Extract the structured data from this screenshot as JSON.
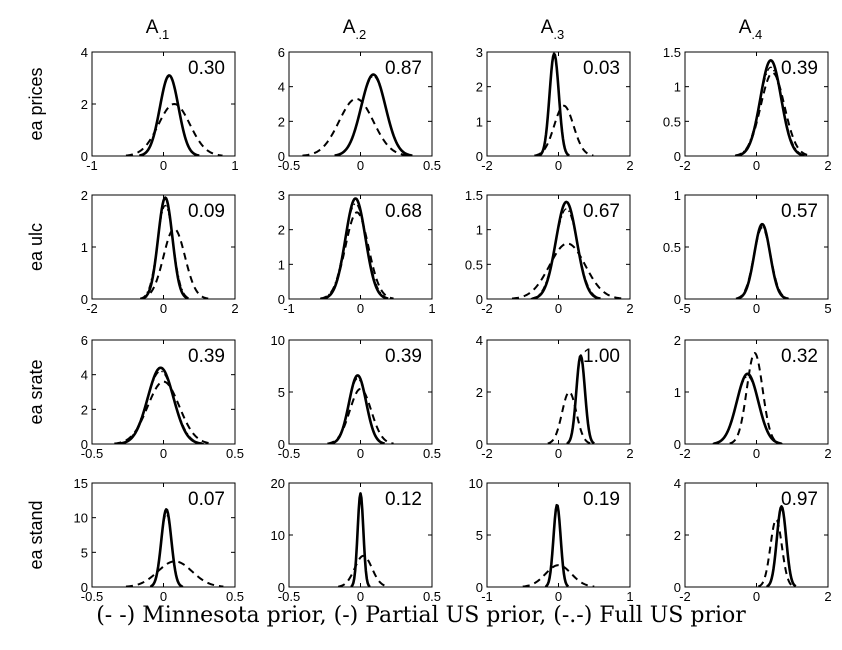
{
  "columns": [
    {
      "title": "A",
      "subscript": ".1"
    },
    {
      "title": "A",
      "subscript": ".2"
    },
    {
      "title": "A",
      "subscript": ".3"
    },
    {
      "title": "A",
      "subscript": ".4"
    }
  ],
  "rows": [
    "ea prices",
    "ea ulc",
    "ea srate",
    "ea stand"
  ],
  "caption": "(- -) Minnesota prior, (-) Partial US prior, (-.-) Full US prior",
  "chart_data": {
    "type": "line",
    "grid": false,
    "legend": "none",
    "panels": [
      {
        "row": 0,
        "col": 0,
        "value_label": "0.30",
        "xlim": [
          -1,
          1
        ],
        "ylim": [
          0,
          4
        ],
        "xticks": [
          {
            "v": -1,
            "label": "-1"
          },
          {
            "v": 0,
            "label": "0"
          },
          {
            "v": 1,
            "label": "1"
          }
        ],
        "yticks": [
          {
            "v": 0,
            "label": "0"
          },
          {
            "v": 2,
            "label": "2"
          },
          {
            "v": 4,
            "label": "4"
          }
        ],
        "series": [
          {
            "style": "solid",
            "mean": 0.08,
            "sd": 0.13,
            "peak": 3.1
          },
          {
            "style": "dashdot",
            "mean": 0.08,
            "sd": 0.13,
            "peak": 3.05
          },
          {
            "style": "dashed",
            "mean": 0.15,
            "sd": 0.22,
            "peak": 2.0
          }
        ]
      },
      {
        "row": 0,
        "col": 1,
        "value_label": "0.87",
        "xlim": [
          -0.5,
          0.5
        ],
        "ylim": [
          0,
          6
        ],
        "xticks": [
          {
            "v": -0.5,
            "label": "-0.5"
          },
          {
            "v": 0,
            "label": "0"
          },
          {
            "v": 0.5,
            "label": "0.5"
          }
        ],
        "yticks": [
          {
            "v": 0,
            "label": "0"
          },
          {
            "v": 2,
            "label": "2"
          },
          {
            "v": 4,
            "label": "4"
          },
          {
            "v": 6,
            "label": "6"
          }
        ],
        "series": [
          {
            "style": "solid",
            "mean": 0.09,
            "sd": 0.085,
            "peak": 4.7
          },
          {
            "style": "dashdot",
            "mean": 0.09,
            "sd": 0.085,
            "peak": 4.6
          },
          {
            "style": "dashed",
            "mean": -0.03,
            "sd": 0.12,
            "peak": 3.3
          }
        ]
      },
      {
        "row": 0,
        "col": 2,
        "value_label": "0.03",
        "xlim": [
          -2,
          2
        ],
        "ylim": [
          0,
          3
        ],
        "xticks": [
          {
            "v": -2,
            "label": "-2"
          },
          {
            "v": 0,
            "label": "0"
          },
          {
            "v": 2,
            "label": "2"
          }
        ],
        "yticks": [
          {
            "v": 0,
            "label": "0"
          },
          {
            "v": 1,
            "label": "1"
          },
          {
            "v": 2,
            "label": "2"
          },
          {
            "v": 3,
            "label": "3"
          }
        ],
        "series": [
          {
            "style": "solid",
            "mean": -0.12,
            "sd": 0.13,
            "peak": 2.95
          },
          {
            "style": "dashdot",
            "mean": -0.12,
            "sd": 0.13,
            "peak": 2.9
          },
          {
            "style": "dashed",
            "mean": 0.15,
            "sd": 0.27,
            "peak": 1.45
          }
        ]
      },
      {
        "row": 0,
        "col": 3,
        "value_label": "0.39",
        "xlim": [
          -2,
          2
        ],
        "ylim": [
          0,
          1.5
        ],
        "xticks": [
          {
            "v": -2,
            "label": "-2"
          },
          {
            "v": 0,
            "label": "0"
          },
          {
            "v": 2,
            "label": "2"
          }
        ],
        "yticks": [
          {
            "v": 0,
            "label": "0"
          },
          {
            "v": 0.5,
            "label": "0.5"
          },
          {
            "v": 1,
            "label": "1"
          },
          {
            "v": 1.5,
            "label": "1.5"
          }
        ],
        "series": [
          {
            "style": "solid",
            "mean": 0.4,
            "sd": 0.29,
            "peak": 1.38
          },
          {
            "style": "dashdot",
            "mean": 0.4,
            "sd": 0.31,
            "peak": 1.28
          },
          {
            "style": "dashed",
            "mean": 0.45,
            "sd": 0.33,
            "peak": 1.2
          }
        ]
      },
      {
        "row": 1,
        "col": 0,
        "value_label": "0.09",
        "xlim": [
          -2,
          2
        ],
        "ylim": [
          0,
          2
        ],
        "xticks": [
          {
            "v": -2,
            "label": "-2"
          },
          {
            "v": 0,
            "label": "0"
          },
          {
            "v": 2,
            "label": "2"
          }
        ],
        "yticks": [
          {
            "v": 0,
            "label": "0"
          },
          {
            "v": 1,
            "label": "1"
          },
          {
            "v": 2,
            "label": "2"
          }
        ],
        "series": [
          {
            "style": "solid",
            "mean": 0.05,
            "sd": 0.2,
            "peak": 1.95
          },
          {
            "style": "dashdot",
            "mean": 0.05,
            "sd": 0.22,
            "peak": 1.8
          },
          {
            "style": "dashed",
            "mean": 0.3,
            "sd": 0.3,
            "peak": 1.35
          }
        ]
      },
      {
        "row": 1,
        "col": 1,
        "value_label": "0.68",
        "xlim": [
          -1,
          1
        ],
        "ylim": [
          0,
          3
        ],
        "xticks": [
          {
            "v": -1,
            "label": "-1"
          },
          {
            "v": 0,
            "label": "0"
          },
          {
            "v": 1,
            "label": "1"
          }
        ],
        "yticks": [
          {
            "v": 0,
            "label": "0"
          },
          {
            "v": 1,
            "label": "1"
          },
          {
            "v": 2,
            "label": "2"
          },
          {
            "v": 3,
            "label": "3"
          }
        ],
        "series": [
          {
            "style": "solid",
            "mean": -0.07,
            "sd": 0.14,
            "peak": 2.9
          },
          {
            "style": "dashdot",
            "mean": -0.07,
            "sd": 0.15,
            "peak": 2.75
          },
          {
            "style": "dashed",
            "mean": -0.05,
            "sd": 0.16,
            "peak": 2.5
          }
        ]
      },
      {
        "row": 1,
        "col": 2,
        "value_label": "0.67",
        "xlim": [
          -2,
          2
        ],
        "ylim": [
          0,
          1.5
        ],
        "xticks": [
          {
            "v": -2,
            "label": "-2"
          },
          {
            "v": 0,
            "label": "0"
          },
          {
            "v": 2,
            "label": "2"
          }
        ],
        "yticks": [
          {
            "v": 0,
            "label": "0"
          },
          {
            "v": 0.5,
            "label": "0.5"
          },
          {
            "v": 1,
            "label": "1"
          },
          {
            "v": 1.5,
            "label": "1.5"
          }
        ],
        "series": [
          {
            "style": "solid",
            "mean": 0.22,
            "sd": 0.29,
            "peak": 1.4
          },
          {
            "style": "dashdot",
            "mean": 0.22,
            "sd": 0.31,
            "peak": 1.3
          },
          {
            "style": "dashed",
            "mean": 0.25,
            "sd": 0.5,
            "peak": 0.8
          }
        ]
      },
      {
        "row": 1,
        "col": 3,
        "value_label": "0.57",
        "xlim": [
          -5,
          5
        ],
        "ylim": [
          0,
          1
        ],
        "xticks": [
          {
            "v": -5,
            "label": "-5"
          },
          {
            "v": 0,
            "label": "0"
          },
          {
            "v": 5,
            "label": "5"
          }
        ],
        "yticks": [
          {
            "v": 0,
            "label": "0"
          },
          {
            "v": 0.5,
            "label": "0.5"
          },
          {
            "v": 1,
            "label": "1"
          }
        ],
        "series": [
          {
            "style": "solid",
            "mean": 0.4,
            "sd": 0.55,
            "peak": 0.72
          },
          {
            "style": "dashdot",
            "mean": 0.4,
            "sd": 0.57,
            "peak": 0.7
          },
          {
            "style": "dashed",
            "mean": 0.4,
            "sd": 0.58,
            "peak": 0.69
          }
        ]
      },
      {
        "row": 2,
        "col": 0,
        "value_label": "0.39",
        "xlim": [
          -0.5,
          0.5
        ],
        "ylim": [
          0,
          6
        ],
        "xticks": [
          {
            "v": -0.5,
            "label": "-0.5"
          },
          {
            "v": 0,
            "label": "0"
          },
          {
            "v": 0.5,
            "label": "0.5"
          }
        ],
        "yticks": [
          {
            "v": 0,
            "label": "0"
          },
          {
            "v": 2,
            "label": "2"
          },
          {
            "v": 4,
            "label": "4"
          },
          {
            "v": 6,
            "label": "6"
          }
        ],
        "series": [
          {
            "style": "solid",
            "mean": -0.02,
            "sd": 0.09,
            "peak": 4.4
          },
          {
            "style": "dashdot",
            "mean": -0.02,
            "sd": 0.095,
            "peak": 4.2
          },
          {
            "style": "dashed",
            "mean": 0.0,
            "sd": 0.11,
            "peak": 3.6
          }
        ]
      },
      {
        "row": 2,
        "col": 1,
        "value_label": "0.39",
        "xlim": [
          -0.5,
          0.5
        ],
        "ylim": [
          0,
          10
        ],
        "xticks": [
          {
            "v": -0.5,
            "label": "-0.5"
          },
          {
            "v": 0,
            "label": "0"
          },
          {
            "v": 0.5,
            "label": "0.5"
          }
        ],
        "yticks": [
          {
            "v": 0,
            "label": "0"
          },
          {
            "v": 5,
            "label": "5"
          },
          {
            "v": 10,
            "label": "10"
          }
        ],
        "series": [
          {
            "style": "solid",
            "mean": -0.02,
            "sd": 0.06,
            "peak": 6.6
          },
          {
            "style": "dashdot",
            "mean": -0.02,
            "sd": 0.063,
            "peak": 6.3
          },
          {
            "style": "dashed",
            "mean": 0.0,
            "sd": 0.075,
            "peak": 5.3
          }
        ]
      },
      {
        "row": 2,
        "col": 2,
        "value_label": "1.00",
        "xlim": [
          -2,
          2
        ],
        "ylim": [
          0,
          4
        ],
        "xticks": [
          {
            "v": -2,
            "label": "-2"
          },
          {
            "v": 0,
            "label": "0"
          },
          {
            "v": 2,
            "label": "2"
          }
        ],
        "yticks": [
          {
            "v": 0,
            "label": "0"
          },
          {
            "v": 2,
            "label": "2"
          },
          {
            "v": 4,
            "label": "4"
          }
        ],
        "series": [
          {
            "style": "solid",
            "mean": 0.62,
            "sd": 0.12,
            "peak": 3.4
          },
          {
            "style": "dashdot",
            "mean": 0.62,
            "sd": 0.125,
            "peak": 3.3
          },
          {
            "style": "dashed",
            "mean": 0.3,
            "sd": 0.2,
            "peak": 2.0
          }
        ]
      },
      {
        "row": 2,
        "col": 3,
        "value_label": "0.32",
        "xlim": [
          -2,
          2
        ],
        "ylim": [
          0,
          2
        ],
        "xticks": [
          {
            "v": -2,
            "label": "-2"
          },
          {
            "v": 0,
            "label": "0"
          },
          {
            "v": 2,
            "label": "2"
          }
        ],
        "yticks": [
          {
            "v": 0,
            "label": "0"
          },
          {
            "v": 1,
            "label": "1"
          },
          {
            "v": 2,
            "label": "2"
          }
        ],
        "series": [
          {
            "style": "solid",
            "mean": -0.25,
            "sd": 0.3,
            "peak": 1.35
          },
          {
            "style": "dashdot",
            "mean": -0.25,
            "sd": 0.31,
            "peak": 1.3
          },
          {
            "style": "dashed",
            "mean": -0.05,
            "sd": 0.22,
            "peak": 1.75
          }
        ]
      },
      {
        "row": 3,
        "col": 0,
        "value_label": "0.07",
        "xlim": [
          -0.5,
          0.5
        ],
        "ylim": [
          0,
          15
        ],
        "xticks": [
          {
            "v": -0.5,
            "label": "-0.5"
          },
          {
            "v": 0,
            "label": "0"
          },
          {
            "v": 0.5,
            "label": "0.5"
          }
        ],
        "yticks": [
          {
            "v": 0,
            "label": "0"
          },
          {
            "v": 5,
            "label": "5"
          },
          {
            "v": 10,
            "label": "10"
          },
          {
            "v": 15,
            "label": "15"
          }
        ],
        "series": [
          {
            "style": "solid",
            "mean": 0.02,
            "sd": 0.035,
            "peak": 11.2
          },
          {
            "style": "dashdot",
            "mean": 0.02,
            "sd": 0.037,
            "peak": 10.5
          },
          {
            "style": "dashed",
            "mean": 0.08,
            "sd": 0.12,
            "peak": 3.7
          }
        ]
      },
      {
        "row": 3,
        "col": 1,
        "value_label": "0.12",
        "xlim": [
          -0.5,
          0.5
        ],
        "ylim": [
          0,
          20
        ],
        "xticks": [
          {
            "v": -0.5,
            "label": "-0.5"
          },
          {
            "v": 0,
            "label": "0"
          },
          {
            "v": 0.5,
            "label": "0.5"
          }
        ],
        "yticks": [
          {
            "v": 0,
            "label": "0"
          },
          {
            "v": 10,
            "label": "10"
          },
          {
            "v": 20,
            "label": "20"
          }
        ],
        "series": [
          {
            "style": "solid",
            "mean": 0.0,
            "sd": 0.02,
            "peak": 18.0
          },
          {
            "style": "dashdot",
            "mean": 0.0,
            "sd": 0.021,
            "peak": 17.0
          },
          {
            "style": "dashed",
            "mean": 0.02,
            "sd": 0.06,
            "peak": 6.0
          }
        ]
      },
      {
        "row": 3,
        "col": 2,
        "value_label": "0.19",
        "xlim": [
          -1,
          1
        ],
        "ylim": [
          0,
          10
        ],
        "xticks": [
          {
            "v": -1,
            "label": "-1"
          },
          {
            "v": 0,
            "label": "0"
          },
          {
            "v": 1,
            "label": "1"
          }
        ],
        "yticks": [
          {
            "v": 0,
            "label": "0"
          },
          {
            "v": 5,
            "label": "5"
          },
          {
            "v": 10,
            "label": "10"
          }
        ],
        "series": [
          {
            "style": "solid",
            "mean": -0.02,
            "sd": 0.05,
            "peak": 7.9
          },
          {
            "style": "dashdot",
            "mean": -0.02,
            "sd": 0.052,
            "peak": 7.6
          },
          {
            "style": "dashed",
            "mean": 0.0,
            "sd": 0.18,
            "peak": 2.1
          }
        ]
      },
      {
        "row": 3,
        "col": 3,
        "value_label": "0.97",
        "xlim": [
          -2,
          2
        ],
        "ylim": [
          0,
          4
        ],
        "xticks": [
          {
            "v": -2,
            "label": "-2"
          },
          {
            "v": 0,
            "label": "0"
          },
          {
            "v": 2,
            "label": "2"
          }
        ],
        "yticks": [
          {
            "v": 0,
            "label": "0"
          },
          {
            "v": 2,
            "label": "2"
          },
          {
            "v": 4,
            "label": "4"
          }
        ],
        "series": [
          {
            "style": "solid",
            "mean": 0.7,
            "sd": 0.13,
            "peak": 3.1
          },
          {
            "style": "dashdot",
            "mean": 0.7,
            "sd": 0.135,
            "peak": 3.0
          },
          {
            "style": "dashed",
            "mean": 0.55,
            "sd": 0.16,
            "peak": 2.6
          }
        ]
      }
    ]
  }
}
